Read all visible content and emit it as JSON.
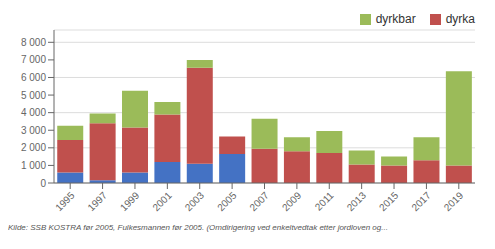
{
  "chart_data": {
    "type": "bar",
    "stacked": true,
    "categories": [
      "1995",
      "1997",
      "1999",
      "2001",
      "2003",
      "2005",
      "2007",
      "2009",
      "2011",
      "2013",
      "2015",
      "2017",
      "2019"
    ],
    "series": [
      {
        "color": "#4472C4",
        "values": [
          600,
          150,
          600,
          1200,
          1100,
          1650,
          0,
          0,
          0,
          0,
          0,
          0,
          0
        ]
      },
      {
        "name": "dyrka",
        "color": "#C0504D",
        "values": [
          1850,
          3250,
          2550,
          2700,
          5450,
          1000,
          1950,
          1800,
          1700,
          1050,
          1000,
          1300,
          1000
        ]
      },
      {
        "name": "dyrkbar",
        "color": "#9BBB59",
        "values": [
          800,
          550,
          2100,
          700,
          450,
          0,
          1700,
          800,
          1250,
          800,
          500,
          1300,
          5350
        ]
      }
    ],
    "ylim": [
      0,
      8700
    ],
    "yticks": [
      0,
      {
        "value": 1000,
        "label": "1 000"
      },
      {
        "value": 2000,
        "label": "2 000"
      },
      {
        "value": 3000,
        "label": "3 000"
      },
      {
        "value": 4000,
        "label": "4 000"
      },
      {
        "value": 5000,
        "label": "5 000"
      },
      {
        "value": 6000,
        "label": "6 000"
      },
      {
        "value": 7000,
        "label": "7 000"
      },
      {
        "value": 8000,
        "label": "8 000"
      }
    ],
    "grid": true,
    "legend": "upper right",
    "footnote": "Kilde: SSB KOSTRA før 2005, Fulkesmannen før 2005. (Omdirigering ved enkeltvedtak etter jordloven og..."
  }
}
